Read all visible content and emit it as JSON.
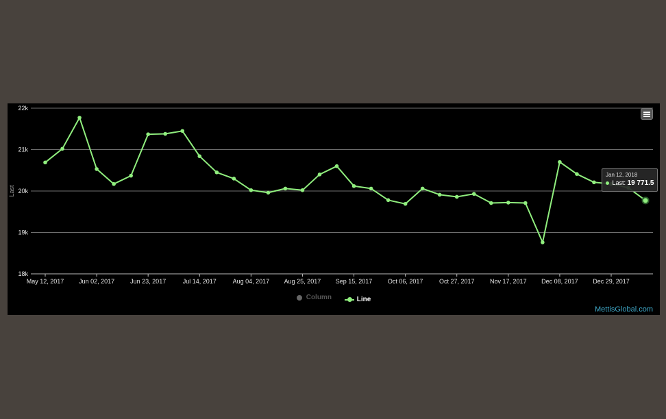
{
  "chart_data": {
    "type": "line",
    "ylabel": "Last",
    "ylim": [
      18000,
      22000
    ],
    "yticks": [
      {
        "value": 18000,
        "label": "18k"
      },
      {
        "value": 19000,
        "label": "19k"
      },
      {
        "value": 20000,
        "label": "20k"
      },
      {
        "value": 21000,
        "label": "21k"
      },
      {
        "value": 22000,
        "label": "22k"
      }
    ],
    "xticks": [
      "May 12, 2017",
      "Jun 02, 2017",
      "Jun 23, 2017",
      "Jul 14, 2017",
      "Aug 04, 2017",
      "Aug 25, 2017",
      "Sep 15, 2017",
      "Oct 06, 2017",
      "Oct 27, 2017",
      "Nov 17, 2017",
      "Dec 08, 2017",
      "Dec 29, 2017"
    ],
    "x": [
      "May 12, 2017",
      "May 19, 2017",
      "May 26, 2017",
      "Jun 02, 2017",
      "Jun 09, 2017",
      "Jun 16, 2017",
      "Jun 23, 2017",
      "Jun 30, 2017",
      "Jul 07, 2017",
      "Jul 14, 2017",
      "Jul 21, 2017",
      "Jul 28, 2017",
      "Aug 04, 2017",
      "Aug 11, 2017",
      "Aug 18, 2017",
      "Aug 25, 2017",
      "Sep 01, 2017",
      "Sep 08, 2017",
      "Sep 15, 2017",
      "Sep 22, 2017",
      "Sep 29, 2017",
      "Oct 06, 2017",
      "Oct 13, 2017",
      "Oct 20, 2017",
      "Oct 27, 2017",
      "Nov 03, 2017",
      "Nov 10, 2017",
      "Nov 17, 2017",
      "Nov 24, 2017",
      "Dec 01, 2017",
      "Dec 08, 2017",
      "Dec 15, 2017",
      "Dec 22, 2017",
      "Dec 29, 2017",
      "Jan 05, 2018",
      "Jan 12, 2018"
    ],
    "series": [
      {
        "name": "Line",
        "color": "#90ee7e",
        "values": [
          20690,
          21020,
          21770,
          20530,
          20170,
          20370,
          21370,
          21380,
          21450,
          20840,
          20450,
          20300,
          20020,
          19960,
          20060,
          20020,
          20400,
          20600,
          20120,
          20060,
          19780,
          19690,
          20060,
          19910,
          19860,
          19930,
          19710,
          19720,
          19710,
          18760,
          20700,
          20410,
          20210,
          20170,
          20080,
          19771.5
        ]
      }
    ],
    "legend": [
      {
        "name": "Column",
        "type": "column",
        "color": "#666666",
        "visible": false
      },
      {
        "name": "Line",
        "type": "line",
        "color": "#90ee7e",
        "visible": true
      }
    ],
    "legend_position": "bottom-center",
    "grid": true,
    "tooltip": {
      "date": "Jan 12, 2018",
      "label": "Last:",
      "value": "19 771.5"
    }
  },
  "toolbar": {
    "menu_icon": "hamburger-menu-icon"
  },
  "credits": {
    "text": "MettisGlobal.com"
  }
}
